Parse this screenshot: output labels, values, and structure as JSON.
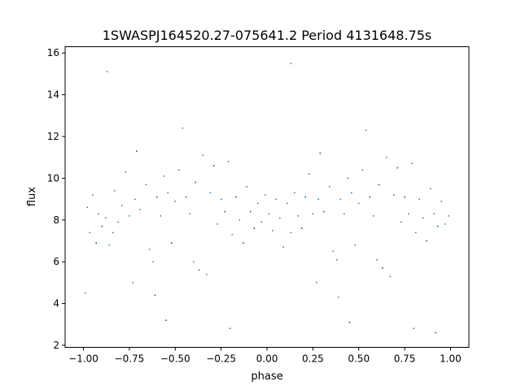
{
  "chart_data": {
    "type": "scatter",
    "title": "1SWASPJ164520.27-075641.2 Period 4131648.75s",
    "xlabel": "phase",
    "ylabel": "flux",
    "xlim": [
      -1.1,
      1.1
    ],
    "ylim": [
      1.9,
      16.3
    ],
    "xticks": [
      -1.0,
      -0.75,
      -0.5,
      -0.25,
      0.0,
      0.25,
      0.5,
      0.75,
      1.0
    ],
    "xtick_labels": [
      "−1.00",
      "−0.75",
      "−0.50",
      "−0.25",
      "0.00",
      "0.25",
      "0.50",
      "0.75",
      "1.00"
    ],
    "yticks": [
      2,
      4,
      6,
      8,
      10,
      12,
      14,
      16
    ],
    "ytick_labels": [
      "2",
      "4",
      "6",
      "8",
      "10",
      "12",
      "14",
      "16"
    ],
    "grid": false,
    "marker_color": "#1f77b4",
    "series": [
      {
        "points": [
          [
            -0.98,
            8.6
          ],
          [
            -0.965,
            7.4
          ],
          [
            -0.95,
            9.2
          ],
          [
            -0.93,
            6.9
          ],
          [
            -0.92,
            8.3
          ],
          [
            -0.9,
            7.7
          ],
          [
            -0.88,
            8.1
          ],
          [
            -0.86,
            6.8
          ],
          [
            -0.84,
            7.4
          ],
          [
            -0.83,
            9.4
          ],
          [
            -0.81,
            7.9
          ],
          [
            -0.79,
            8.7
          ],
          [
            -0.77,
            10.3
          ],
          [
            -0.75,
            8.2
          ],
          [
            -0.73,
            5.0
          ],
          [
            -0.72,
            9.0
          ],
          [
            -0.71,
            11.3
          ],
          [
            -0.69,
            8.5
          ],
          [
            -0.66,
            9.7
          ],
          [
            -0.64,
            6.6
          ],
          [
            -0.62,
            6.0
          ],
          [
            -0.6,
            9.1
          ],
          [
            -0.58,
            8.2
          ],
          [
            -0.56,
            10.1
          ],
          [
            -0.54,
            9.3
          ],
          [
            -0.52,
            6.9
          ],
          [
            -0.5,
            8.9
          ],
          [
            -0.48,
            10.4
          ],
          [
            -0.46,
            12.4
          ],
          [
            -0.44,
            9.1
          ],
          [
            -0.42,
            8.3
          ],
          [
            -0.4,
            6.0
          ],
          [
            -0.39,
            9.8
          ],
          [
            -0.37,
            5.6
          ],
          [
            -0.35,
            11.1
          ],
          [
            -0.33,
            5.4
          ],
          [
            -0.31,
            9.3
          ],
          [
            -0.29,
            10.6
          ],
          [
            -0.27,
            7.8
          ],
          [
            -0.25,
            9.0
          ],
          [
            -0.23,
            8.4
          ],
          [
            -0.21,
            10.8
          ],
          [
            -0.19,
            7.3
          ],
          [
            -0.17,
            9.1
          ],
          [
            -0.15,
            8.0
          ],
          [
            -0.13,
            6.9
          ],
          [
            -0.11,
            9.6
          ],
          [
            -0.09,
            8.4
          ],
          [
            -0.07,
            7.6
          ],
          [
            -0.05,
            8.8
          ],
          [
            -0.03,
            7.9
          ],
          [
            -0.01,
            9.2
          ],
          [
            0.01,
            8.3
          ],
          [
            0.03,
            7.5
          ],
          [
            0.05,
            9.0
          ],
          [
            0.07,
            8.1
          ],
          [
            0.09,
            6.7
          ],
          [
            0.11,
            8.8
          ],
          [
            0.13,
            7.4
          ],
          [
            0.15,
            9.3
          ],
          [
            0.17,
            8.2
          ],
          [
            0.19,
            7.6
          ],
          [
            0.21,
            9.1
          ],
          [
            0.23,
            10.2
          ],
          [
            0.25,
            8.3
          ],
          [
            0.27,
            5.0
          ],
          [
            0.28,
            9.0
          ],
          [
            0.29,
            11.2
          ],
          [
            0.31,
            8.4
          ],
          [
            0.34,
            9.6
          ],
          [
            0.36,
            6.5
          ],
          [
            0.38,
            6.1
          ],
          [
            0.4,
            9.0
          ],
          [
            0.42,
            8.3
          ],
          [
            0.44,
            10.0
          ],
          [
            0.46,
            9.3
          ],
          [
            0.48,
            6.8
          ],
          [
            0.5,
            8.8
          ],
          [
            0.52,
            10.4
          ],
          [
            0.54,
            12.3
          ],
          [
            0.56,
            9.1
          ],
          [
            0.58,
            8.2
          ],
          [
            0.6,
            6.1
          ],
          [
            0.61,
            9.7
          ],
          [
            0.63,
            5.7
          ],
          [
            0.65,
            11.0
          ],
          [
            0.67,
            5.3
          ],
          [
            0.69,
            9.2
          ],
          [
            0.71,
            10.5
          ],
          [
            0.73,
            7.9
          ],
          [
            0.75,
            9.1
          ],
          [
            0.77,
            8.3
          ],
          [
            0.79,
            10.7
          ],
          [
            0.81,
            7.4
          ],
          [
            0.83,
            9.0
          ],
          [
            0.85,
            8.1
          ],
          [
            0.87,
            7.0
          ],
          [
            0.89,
            9.5
          ],
          [
            0.91,
            8.3
          ],
          [
            0.93,
            7.7
          ],
          [
            0.95,
            8.9
          ],
          [
            0.97,
            7.8
          ],
          [
            0.99,
            8.2
          ],
          [
            -0.87,
            15.1
          ],
          [
            -0.55,
            3.2
          ],
          [
            -0.2,
            2.8
          ],
          [
            0.13,
            15.5
          ],
          [
            0.45,
            3.1
          ],
          [
            0.8,
            2.8
          ],
          [
            0.92,
            2.6
          ],
          [
            -0.99,
            4.5
          ],
          [
            -0.61,
            4.4
          ],
          [
            0.39,
            4.3
          ]
        ]
      }
    ]
  }
}
